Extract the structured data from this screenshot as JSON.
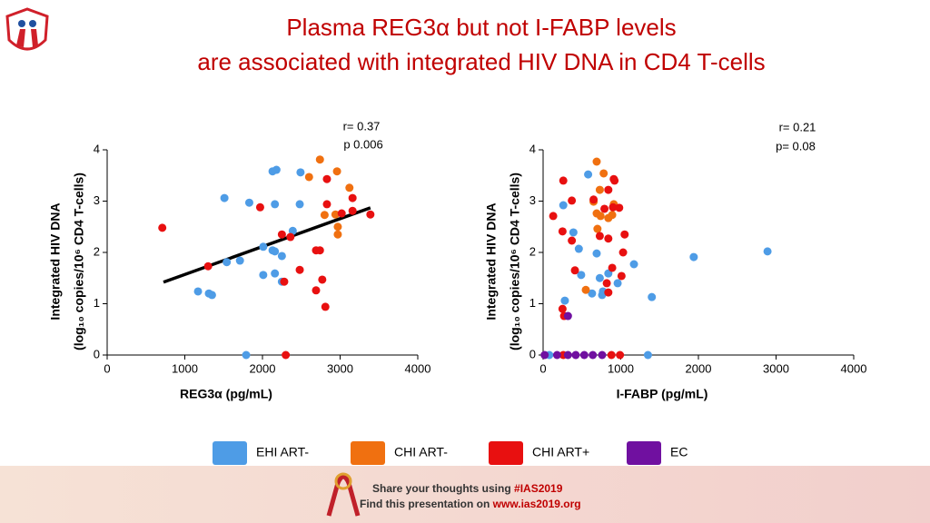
{
  "slide": {
    "title": [
      "Plasma REG3α but not I-FABP levels",
      "are associated with integrated HIV DNA in CD4 T-cells"
    ],
    "footer": [
      [
        "Share your thoughts using ",
        "#IAS2019"
      ],
      [
        "Find this presentation on ",
        "www.ias2019.org"
      ]
    ]
  },
  "chart_data": [
    {
      "type": "scatter",
      "x_label": "REG3α (pg/mL)",
      "y_label": [
        "Integrated HIV DNA",
        "(log₁₀ copies/10⁶ CD4 T-cells)"
      ],
      "annotations": [
        "r= 0.37",
        "p 0.006"
      ],
      "xlim": [
        0,
        4000
      ],
      "xticks": [
        0,
        1000,
        2000,
        3000,
        4000
      ],
      "ylim": [
        0,
        4
      ],
      "yticks": [
        0,
        1,
        2,
        3,
        4
      ],
      "series": [
        {
          "color": "#4e9ce6",
          "x": [
            1510,
            1830,
            1170,
            1310,
            1350,
            1540,
            1710,
            2130,
            2180,
            2490,
            2480,
            2160,
            2010,
            2130,
            2160,
            2250,
            2390,
            2010,
            2160,
            2250,
            1790
          ],
          "values": [
            3.06,
            2.97,
            1.24,
            1.2,
            1.17,
            1.81,
            1.84,
            3.58,
            3.61,
            3.56,
            2.94,
            2.94,
            2.11,
            2.04,
            2.02,
            1.93,
            2.42,
            1.56,
            1.59,
            1.43,
            0
          ]
        },
        {
          "color": "#f07010",
          "x": [
            2740,
            2600,
            2960,
            3120,
            2940,
            2970,
            2970,
            2800
          ],
          "values": [
            3.81,
            3.47,
            3.58,
            3.26,
            2.74,
            2.5,
            2.35,
            2.73
          ]
        },
        {
          "color": "#e81010",
          "x": [
            710,
            1300,
            1970,
            2250,
            2360,
            2280,
            2480,
            2830,
            2830,
            2690,
            2740,
            2690,
            2770,
            2810,
            3160,
            3160,
            3020,
            3390,
            2300
          ],
          "values": [
            2.48,
            1.73,
            2.88,
            2.35,
            2.3,
            1.43,
            1.66,
            3.43,
            2.94,
            2.04,
            2.04,
            1.26,
            1.47,
            0.94,
            3.06,
            2.81,
            2.76,
            2.74,
            0
          ]
        }
      ],
      "trendline": {
        "x": [
          725,
          3390
        ],
        "values": [
          1.42,
          2.87
        ]
      }
    },
    {
      "type": "scatter",
      "x_label": "I-FABP (pg/mL)",
      "y_label": [
        "Integrated HIV DNA",
        "(log₁₀ copies/10⁶ CD4 T-cells)"
      ],
      "annotations": [
        "r= 0.21",
        "p= 0.08"
      ],
      "xlim": [
        0,
        4000
      ],
      "xticks": [
        0,
        1000,
        2000,
        3000,
        4000
      ],
      "ylim": [
        0,
        4
      ],
      "yticks": [
        0,
        1,
        2,
        3,
        4
      ],
      "series": [
        {
          "name": "EHI ART-",
          "color": "#4e9ce6",
          "x": [
            80,
            260,
            280,
            390,
            460,
            490,
            580,
            630,
            690,
            730,
            760,
            770,
            840,
            960,
            1170,
            1400,
            1940,
            2890,
            1350
          ],
          "values": [
            0,
            2.92,
            1.06,
            2.39,
            2.07,
            1.56,
            3.52,
            1.2,
            1.98,
            1.5,
            1.17,
            1.24,
            1.59,
            1.4,
            1.77,
            1.13,
            1.91,
            2.02,
            0
          ]
        },
        {
          "name": "CHI ART-",
          "color": "#f07010",
          "x": [
            690,
            780,
            730,
            690,
            740,
            700,
            910,
            840,
            890,
            550,
            650
          ],
          "values": [
            3.77,
            3.54,
            3.22,
            2.76,
            2.71,
            2.46,
            2.94,
            2.67,
            2.73,
            1.27,
            2.99
          ]
        },
        {
          "name": "CHI ART+",
          "color": "#e81010",
          "x": [
            130,
            260,
            370,
            250,
            370,
            410,
            250,
            270,
            650,
            790,
            840,
            910,
            920,
            900,
            980,
            730,
            840,
            1050,
            1030,
            890,
            1010,
            820,
            840,
            880,
            990,
            260
          ],
          "values": [
            2.71,
            3.4,
            3.01,
            2.41,
            2.23,
            1.65,
            0.9,
            0.76,
            3.03,
            2.85,
            3.22,
            3.43,
            3.4,
            2.88,
            2.87,
            2.32,
            2.27,
            2.35,
            2.0,
            1.7,
            1.54,
            1.4,
            1.22,
            0,
            0,
            0
          ]
        },
        {
          "name": "EC",
          "color": "#7010a0",
          "x": [
            320,
            20,
            180,
            320,
            420,
            530,
            640,
            760
          ],
          "values": [
            0.76,
            0,
            0,
            0,
            0,
            0,
            0,
            0
          ]
        }
      ]
    }
  ]
}
